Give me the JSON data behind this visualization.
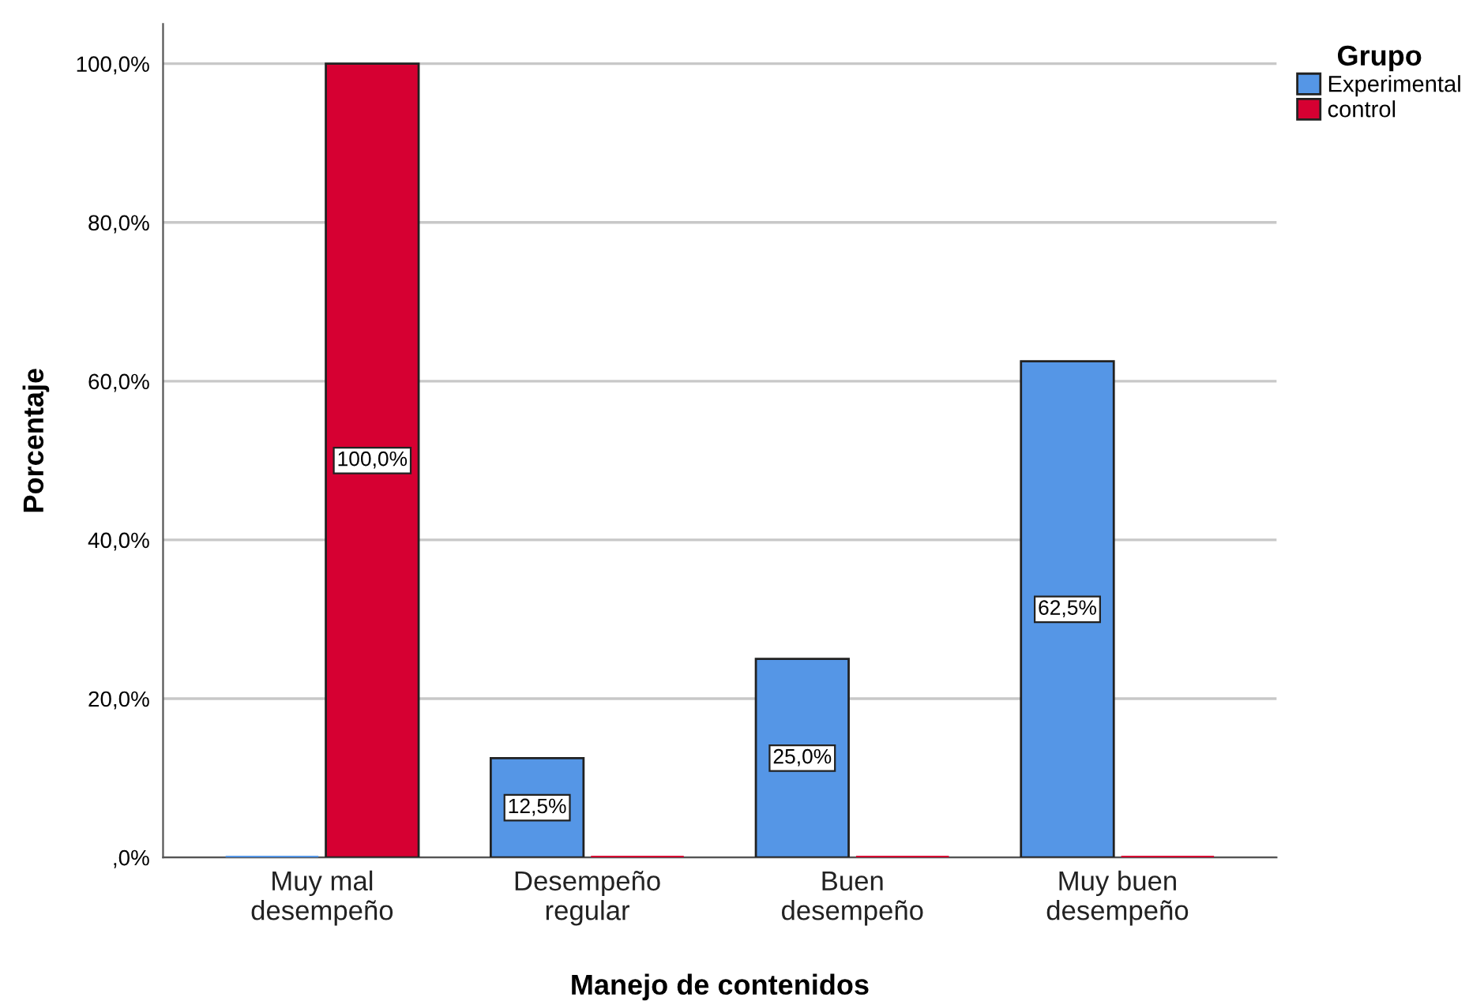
{
  "chart_data": {
    "type": "bar",
    "xlabel": "Manejo de contenidos",
    "ylabel": "Porcentaje",
    "legend_title": "Grupo",
    "categories": [
      "Muy mal\ndesempeño",
      "Desempeño\nregular",
      "Buen\ndesempeño",
      "Muy buen\ndesempeño"
    ],
    "series": [
      {
        "name": "Experimental",
        "color": "#5596e6",
        "values": [
          0,
          12.5,
          25,
          62.5
        ],
        "value_labels": [
          null,
          "12,5%",
          "25,0%",
          "62,5%"
        ]
      },
      {
        "name": "control",
        "color": "#d60032",
        "values": [
          100,
          0,
          0,
          0
        ],
        "value_labels": [
          "100,0%",
          null,
          null,
          null
        ]
      }
    ],
    "ylim": [
      0,
      105
    ],
    "yticks": [
      {
        "value": 0,
        "label": ",0%"
      },
      {
        "value": 20,
        "label": "20,0%"
      },
      {
        "value": 40,
        "label": "40,0%"
      },
      {
        "value": 60,
        "label": "60,0%"
      },
      {
        "value": 80,
        "label": "80,0%"
      },
      {
        "value": 100,
        "label": "100,0%"
      }
    ],
    "grid": "y",
    "legend": "top right"
  }
}
